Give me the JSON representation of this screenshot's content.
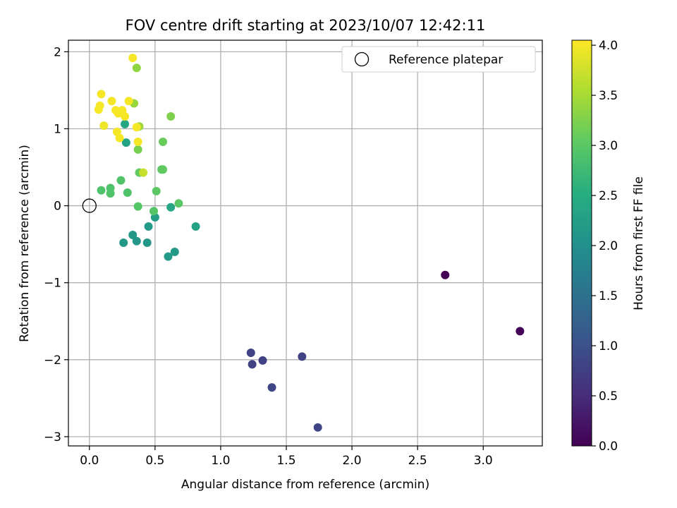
{
  "chart_data": {
    "type": "scatter",
    "title": "FOV centre drift starting at 2023/10/07 12:42:11",
    "xlabel": "Angular distance from reference (arcmin)",
    "ylabel": "Rotation from reference (arcmin)",
    "xlim": [
      -0.16,
      3.45
    ],
    "ylim": [
      -3.12,
      2.15
    ],
    "xticks": [
      0.0,
      0.5,
      1.0,
      1.5,
      2.0,
      2.5,
      3.0
    ],
    "xtick_labels": [
      "0.0",
      "0.5",
      "1.0",
      "1.5",
      "2.0",
      "2.5",
      "3.0"
    ],
    "yticks": [
      -3,
      -2,
      -1,
      0,
      1,
      2
    ],
    "ytick_labels": [
      "−3",
      "−2",
      "−1",
      "0",
      "1",
      "2"
    ],
    "grid": true,
    "legend": {
      "placement": "top-right",
      "label": "Reference platepar"
    },
    "reference_point": {
      "x": 0.0,
      "y": 0.0
    },
    "colorbar": {
      "label": "Hours from first FF file",
      "colormap": "viridis",
      "range": [
        0.0,
        4.05
      ],
      "ticks": [
        0.0,
        0.5,
        1.0,
        1.5,
        2.0,
        2.5,
        3.0,
        3.5,
        4.0
      ],
      "tick_labels": [
        "0.0",
        "0.5",
        "1.0",
        "1.5",
        "2.0",
        "2.5",
        "3.0",
        "3.5",
        "4.0"
      ]
    },
    "points": [
      {
        "x": 2.71,
        "y": -0.9,
        "c": 0.0
      },
      {
        "x": 3.28,
        "y": -1.63,
        "c": 0.02
      },
      {
        "x": 1.23,
        "y": -1.91,
        "c": 0.8
      },
      {
        "x": 1.24,
        "y": -2.06,
        "c": 0.8
      },
      {
        "x": 1.32,
        "y": -2.01,
        "c": 0.8
      },
      {
        "x": 1.62,
        "y": -1.96,
        "c": 0.8
      },
      {
        "x": 1.39,
        "y": -2.36,
        "c": 0.85
      },
      {
        "x": 1.74,
        "y": -2.88,
        "c": 0.85
      },
      {
        "x": 0.33,
        "y": -0.38,
        "c": 2.15
      },
      {
        "x": 0.26,
        "y": -0.48,
        "c": 2.15
      },
      {
        "x": 0.36,
        "y": -0.46,
        "c": 2.15
      },
      {
        "x": 0.44,
        "y": -0.48,
        "c": 2.15
      },
      {
        "x": 0.45,
        "y": -0.27,
        "c": 2.2
      },
      {
        "x": 0.6,
        "y": -0.66,
        "c": 2.2
      },
      {
        "x": 0.65,
        "y": -0.6,
        "c": 2.2
      },
      {
        "x": 0.5,
        "y": -0.15,
        "c": 2.25
      },
      {
        "x": 0.81,
        "y": -0.27,
        "c": 2.3
      },
      {
        "x": 0.62,
        "y": -0.02,
        "c": 2.4
      },
      {
        "x": 0.28,
        "y": 0.82,
        "c": 2.35
      },
      {
        "x": 0.27,
        "y": 1.06,
        "c": 2.4
      },
      {
        "x": 0.49,
        "y": -0.07,
        "c": 2.95
      },
      {
        "x": 0.68,
        "y": 0.03,
        "c": 3.0
      },
      {
        "x": 0.37,
        "y": -0.01,
        "c": 2.95
      },
      {
        "x": 0.09,
        "y": 0.2,
        "c": 2.9
      },
      {
        "x": 0.16,
        "y": 0.23,
        "c": 2.9
      },
      {
        "x": 0.16,
        "y": 0.16,
        "c": 2.9
      },
      {
        "x": 0.29,
        "y": 0.17,
        "c": 2.9
      },
      {
        "x": 0.24,
        "y": 0.33,
        "c": 2.9
      },
      {
        "x": 0.51,
        "y": 0.19,
        "c": 3.0
      },
      {
        "x": 0.38,
        "y": 0.43,
        "c": 3.05
      },
      {
        "x": 0.55,
        "y": 0.47,
        "c": 3.0
      },
      {
        "x": 0.56,
        "y": 0.47,
        "c": 3.05
      },
      {
        "x": 0.56,
        "y": 0.83,
        "c": 3.1
      },
      {
        "x": 0.37,
        "y": 0.73,
        "c": 3.2
      },
      {
        "x": 0.62,
        "y": 1.16,
        "c": 3.25
      },
      {
        "x": 0.36,
        "y": 1.79,
        "c": 3.35
      },
      {
        "x": 0.34,
        "y": 1.33,
        "c": 3.4
      },
      {
        "x": 0.38,
        "y": 1.03,
        "c": 3.45
      },
      {
        "x": 0.41,
        "y": 0.43,
        "c": 3.7
      },
      {
        "x": 0.33,
        "y": 1.92,
        "c": 4.0
      },
      {
        "x": 0.09,
        "y": 1.45,
        "c": 4.0
      },
      {
        "x": 0.07,
        "y": 1.25,
        "c": 4.0
      },
      {
        "x": 0.08,
        "y": 1.3,
        "c": 4.0
      },
      {
        "x": 0.11,
        "y": 1.04,
        "c": 3.95
      },
      {
        "x": 0.17,
        "y": 1.36,
        "c": 4.0
      },
      {
        "x": 0.2,
        "y": 1.24,
        "c": 4.0
      },
      {
        "x": 0.22,
        "y": 1.2,
        "c": 4.0
      },
      {
        "x": 0.25,
        "y": 1.24,
        "c": 4.0
      },
      {
        "x": 0.27,
        "y": 1.16,
        "c": 4.0
      },
      {
        "x": 0.3,
        "y": 1.36,
        "c": 4.0
      },
      {
        "x": 0.21,
        "y": 0.96,
        "c": 4.0
      },
      {
        "x": 0.23,
        "y": 0.88,
        "c": 4.0
      },
      {
        "x": 0.37,
        "y": 0.83,
        "c": 4.0
      },
      {
        "x": 0.36,
        "y": 1.02,
        "c": 4.0
      }
    ]
  }
}
